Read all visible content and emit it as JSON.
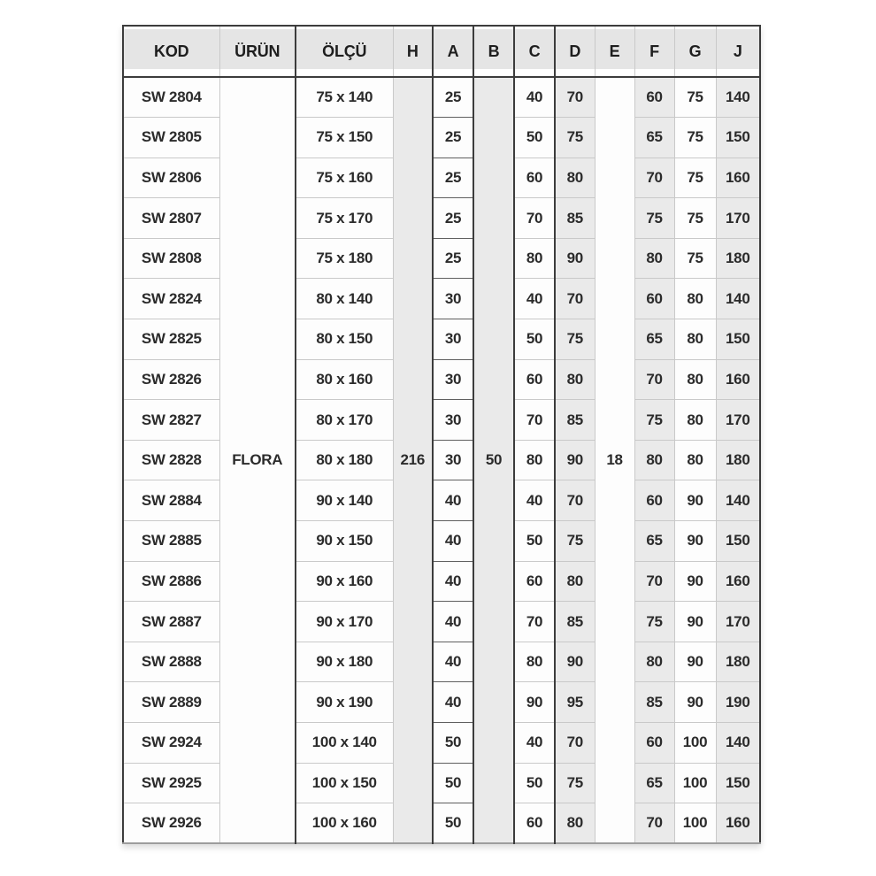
{
  "table": {
    "columns": [
      "KOD",
      "ÜRÜN",
      "ÖLÇÜ",
      "H",
      "A",
      "B",
      "C",
      "D",
      "E",
      "F",
      "G",
      "J"
    ],
    "merged": {
      "urun": "FLORA",
      "h": "216",
      "b": "50",
      "e": "18"
    },
    "rows": [
      {
        "kod": "SW 2804",
        "olcu": "75 x 140",
        "a": "25",
        "c": "40",
        "d": "70",
        "f": "60",
        "g": "75",
        "j": "140"
      },
      {
        "kod": "SW 2805",
        "olcu": "75 x 150",
        "a": "25",
        "c": "50",
        "d": "75",
        "f": "65",
        "g": "75",
        "j": "150"
      },
      {
        "kod": "SW 2806",
        "olcu": "75 x 160",
        "a": "25",
        "c": "60",
        "d": "80",
        "f": "70",
        "g": "75",
        "j": "160"
      },
      {
        "kod": "SW 2807",
        "olcu": "75 x 170",
        "a": "25",
        "c": "70",
        "d": "85",
        "f": "75",
        "g": "75",
        "j": "170"
      },
      {
        "kod": "SW 2808",
        "olcu": "75 x 180",
        "a": "25",
        "c": "80",
        "d": "90",
        "f": "80",
        "g": "75",
        "j": "180"
      },
      {
        "kod": "SW 2824",
        "olcu": "80 x 140",
        "a": "30",
        "c": "40",
        "d": "70",
        "f": "60",
        "g": "80",
        "j": "140"
      },
      {
        "kod": "SW 2825",
        "olcu": "80 x 150",
        "a": "30",
        "c": "50",
        "d": "75",
        "f": "65",
        "g": "80",
        "j": "150"
      },
      {
        "kod": "SW 2826",
        "olcu": "80 x 160",
        "a": "30",
        "c": "60",
        "d": "80",
        "f": "70",
        "g": "80",
        "j": "160"
      },
      {
        "kod": "SW 2827",
        "olcu": "80 x 170",
        "a": "30",
        "c": "70",
        "d": "85",
        "f": "75",
        "g": "80",
        "j": "170"
      },
      {
        "kod": "SW 2828",
        "olcu": "80 x 180",
        "a": "30",
        "c": "80",
        "d": "90",
        "f": "80",
        "g": "80",
        "j": "180"
      },
      {
        "kod": "SW 2884",
        "olcu": "90 x 140",
        "a": "40",
        "c": "40",
        "d": "70",
        "f": "60",
        "g": "90",
        "j": "140"
      },
      {
        "kod": "SW 2885",
        "olcu": "90 x 150",
        "a": "40",
        "c": "50",
        "d": "75",
        "f": "65",
        "g": "90",
        "j": "150"
      },
      {
        "kod": "SW 2886",
        "olcu": "90 x 160",
        "a": "40",
        "c": "60",
        "d": "80",
        "f": "70",
        "g": "90",
        "j": "160"
      },
      {
        "kod": "SW 2887",
        "olcu": "90 x 170",
        "a": "40",
        "c": "70",
        "d": "85",
        "f": "75",
        "g": "90",
        "j": "170"
      },
      {
        "kod": "SW 2888",
        "olcu": "90 x 180",
        "a": "40",
        "c": "80",
        "d": "90",
        "f": "80",
        "g": "90",
        "j": "180"
      },
      {
        "kod": "SW 2889",
        "olcu": "90 x 190",
        "a": "40",
        "c": "90",
        "d": "95",
        "f": "85",
        "g": "90",
        "j": "190"
      },
      {
        "kod": "SW 2924",
        "olcu": "100 x 140",
        "a": "50",
        "c": "40",
        "d": "70",
        "f": "60",
        "g": "100",
        "j": "140"
      },
      {
        "kod": "SW 2925",
        "olcu": "100 x 150",
        "a": "50",
        "c": "50",
        "d": "75",
        "f": "65",
        "g": "100",
        "j": "150"
      },
      {
        "kod": "SW 2926",
        "olcu": "100 x 160",
        "a": "50",
        "c": "60",
        "d": "80",
        "f": "70",
        "g": "100",
        "j": "160"
      }
    ]
  },
  "colors": {
    "header_background": "#e5e5e5",
    "shaded_column_background": "#eaeaea",
    "dark_border": "#3c3c3c",
    "light_border": "#c9c9c9",
    "text": "#2b2b2b"
  }
}
